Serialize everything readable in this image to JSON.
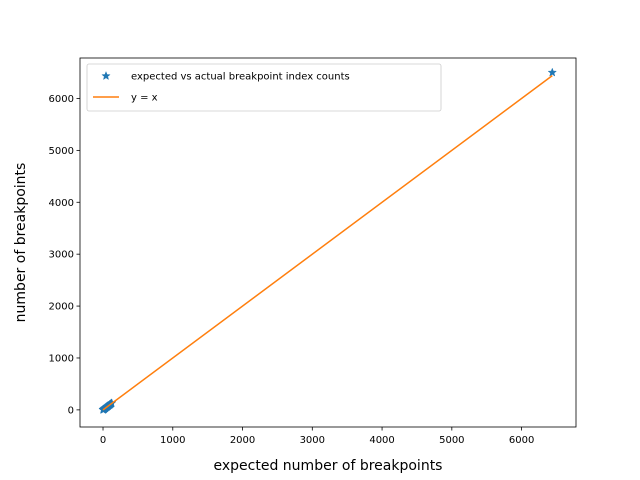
{
  "chart_data": {
    "type": "scatter",
    "title": "",
    "xlabel": "expected number of breakpoints",
    "ylabel": "number of breakpoints",
    "xlim": [
      -330,
      6780
    ],
    "ylim": [
      -330,
      6780
    ],
    "xticks": [
      0,
      1000,
      2000,
      3000,
      4000,
      5000,
      6000
    ],
    "yticks": [
      0,
      1000,
      2000,
      3000,
      4000,
      5000,
      6000
    ],
    "grid": false,
    "legend_position": "top-left",
    "series": [
      {
        "name": "expected vs actual breakpoint index counts",
        "kind": "scatter",
        "marker": "star",
        "color": "#1f77b4",
        "points": [
          [
            0,
            0
          ],
          [
            3,
            5
          ],
          [
            6,
            2
          ],
          [
            10,
            12
          ],
          [
            15,
            8
          ],
          [
            18,
            20
          ],
          [
            22,
            25
          ],
          [
            27,
            30
          ],
          [
            32,
            28
          ],
          [
            36,
            40
          ],
          [
            40,
            42
          ],
          [
            45,
            50
          ],
          [
            50,
            55
          ],
          [
            55,
            52
          ],
          [
            60,
            62
          ],
          [
            65,
            68
          ],
          [
            70,
            75
          ],
          [
            75,
            72
          ],
          [
            80,
            85
          ],
          [
            85,
            88
          ],
          [
            90,
            95
          ],
          [
            95,
            92
          ],
          [
            100,
            105
          ],
          [
            105,
            110
          ],
          [
            110,
            115
          ],
          [
            115,
            118
          ],
          [
            120,
            125
          ],
          [
            125,
            130
          ],
          [
            6440,
            6500
          ]
        ]
      },
      {
        "name": "y = x",
        "kind": "line",
        "color": "#ff7f0e",
        "x": [
          0,
          6440
        ],
        "y": [
          0,
          6440
        ]
      }
    ]
  }
}
